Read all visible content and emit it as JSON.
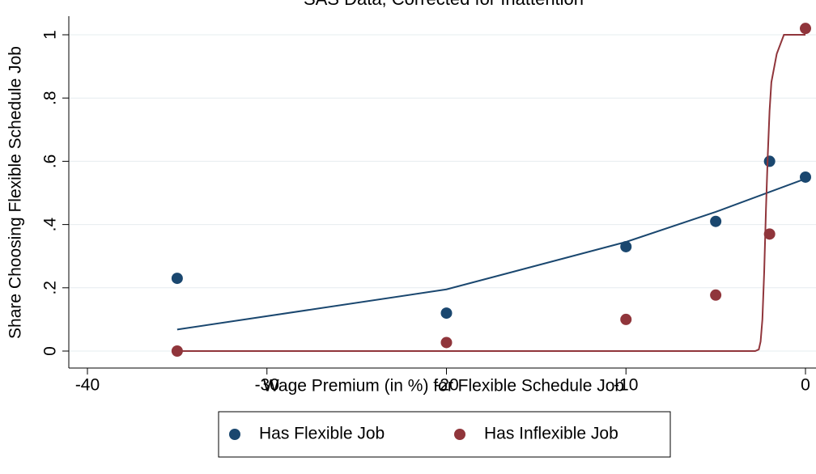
{
  "chart_data": {
    "type": "scatter",
    "title": "SAS Data, Corrected for Inattention",
    "x_label": "Wage Premium (in %) for Flexible Schedule Job",
    "y_label": "Share Choosing Flexible Schedule Job",
    "xlim": [
      -40,
      0
    ],
    "xticks": [
      -40,
      -30,
      -20,
      -10,
      0
    ],
    "ylim": [
      0,
      1
    ],
    "yticks": [
      0,
      {
        "value": 0.2,
        "label": ".2"
      },
      {
        "value": 0.4,
        "label": ".4"
      },
      {
        "value": 0.6,
        "label": ".6"
      },
      {
        "value": 0.8,
        "label": ".8"
      },
      1
    ],
    "grid": true,
    "legend": "bottom",
    "series": [
      {
        "name": "Has Flexible Job",
        "color": "#1a476f",
        "x": [
          -35,
          -20,
          -10,
          -5,
          -2,
          0
        ],
        "values": [
          0.23,
          0.12,
          0.33,
          0.41,
          0.6,
          0.55
        ],
        "fit": {
          "x": [
            -35,
            -20,
            -10,
            -5,
            0
          ],
          "values": [
            0.068,
            0.195,
            0.345,
            0.44,
            0.545
          ]
        }
      },
      {
        "name": "Has Inflexible Job",
        "color": "#90353b",
        "x": [
          -35,
          -20,
          -10,
          -5,
          -2,
          0
        ],
        "values": [
          0,
          0.027,
          0.1,
          0.177,
          0.37,
          1.02
        ],
        "fit": {
          "x": [
            -35,
            -20,
            -10,
            -5,
            -2.8,
            -2.6,
            -2.5,
            -2.4,
            -2.3,
            -2.2,
            -2.1,
            -2.0,
            -1.9,
            -1.6,
            -1.2,
            0
          ],
          "values": [
            0,
            0,
            0,
            0,
            0,
            0.005,
            0.03,
            0.1,
            0.25,
            0.45,
            0.62,
            0.76,
            0.85,
            0.94,
            1,
            1
          ]
        }
      }
    ]
  }
}
